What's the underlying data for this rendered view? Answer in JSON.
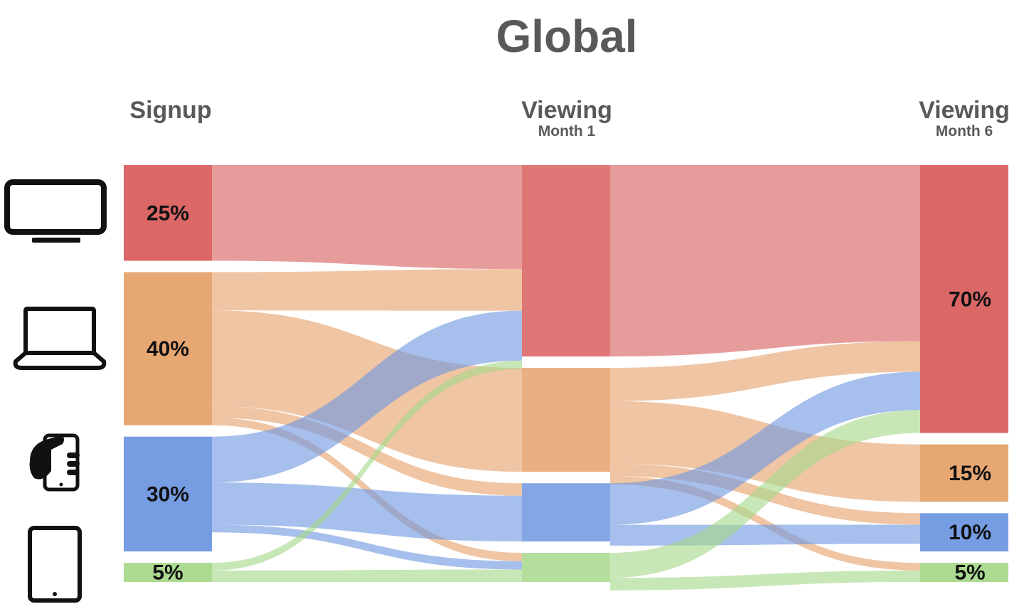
{
  "title": "Global",
  "stages": [
    {
      "name": "Signup",
      "sub": ""
    },
    {
      "name": "Viewing",
      "sub": "Month 1"
    },
    {
      "name": "Viewing",
      "sub": "Month 6"
    }
  ],
  "device_icons": [
    "tv-icon",
    "laptop-icon",
    "phone-icon",
    "tablet-icon"
  ],
  "chart_data": {
    "type": "sankey",
    "title": "Global",
    "devices": [
      "TV",
      "Laptop",
      "Phone",
      "Tablet"
    ],
    "colors": {
      "TV": "#d95f5f",
      "Laptop": "#e6a26c",
      "Phone": "#6f97e0",
      "Tablet": "#a7d88a"
    },
    "columns": [
      {
        "name": "Signup",
        "values": [
          25,
          40,
          30,
          5
        ],
        "labels": [
          "25%",
          "40%",
          "30%",
          "5%"
        ]
      },
      {
        "name": "Viewing Month 1",
        "values": [
          46,
          25,
          14,
          7
        ],
        "labels": [
          "",
          "",
          "",
          ""
        ]
      },
      {
        "name": "Viewing Month 6",
        "values": [
          70,
          15,
          10,
          5
        ],
        "labels": [
          "70%",
          "15%",
          "10%",
          "5%"
        ]
      }
    ],
    "flows": [
      {
        "from": [
          0,
          0
        ],
        "to": [
          1,
          0
        ],
        "value": 25
      },
      {
        "from": [
          0,
          1
        ],
        "to": [
          1,
          0
        ],
        "value": 10
      },
      {
        "from": [
          0,
          1
        ],
        "to": [
          1,
          1
        ],
        "value": 25
      },
      {
        "from": [
          0,
          1
        ],
        "to": [
          1,
          2
        ],
        "value": 3
      },
      {
        "from": [
          0,
          1
        ],
        "to": [
          1,
          3
        ],
        "value": 2
      },
      {
        "from": [
          0,
          2
        ],
        "to": [
          1,
          0
        ],
        "value": 12
      },
      {
        "from": [
          0,
          2
        ],
        "to": [
          1,
          2
        ],
        "value": 11
      },
      {
        "from": [
          0,
          2
        ],
        "to": [
          1,
          3
        ],
        "value": 2
      },
      {
        "from": [
          0,
          3
        ],
        "to": [
          1,
          0
        ],
        "value": 2
      },
      {
        "from": [
          0,
          3
        ],
        "to": [
          1,
          3
        ],
        "value": 3
      },
      {
        "from": [
          1,
          0
        ],
        "to": [
          2,
          0
        ],
        "value": 46
      },
      {
        "from": [
          1,
          1
        ],
        "to": [
          2,
          0
        ],
        "value": 8
      },
      {
        "from": [
          1,
          1
        ],
        "to": [
          2,
          1
        ],
        "value": 15
      },
      {
        "from": [
          1,
          1
        ],
        "to": [
          2,
          2
        ],
        "value": 3
      },
      {
        "from": [
          1,
          1
        ],
        "to": [
          2,
          3
        ],
        "value": 2
      },
      {
        "from": [
          1,
          2
        ],
        "to": [
          2,
          0
        ],
        "value": 10
      },
      {
        "from": [
          1,
          2
        ],
        "to": [
          2,
          2
        ],
        "value": 5
      },
      {
        "from": [
          1,
          3
        ],
        "to": [
          2,
          0
        ],
        "value": 6
      },
      {
        "from": [
          1,
          3
        ],
        "to": [
          2,
          3
        ],
        "value": 3
      }
    ]
  }
}
